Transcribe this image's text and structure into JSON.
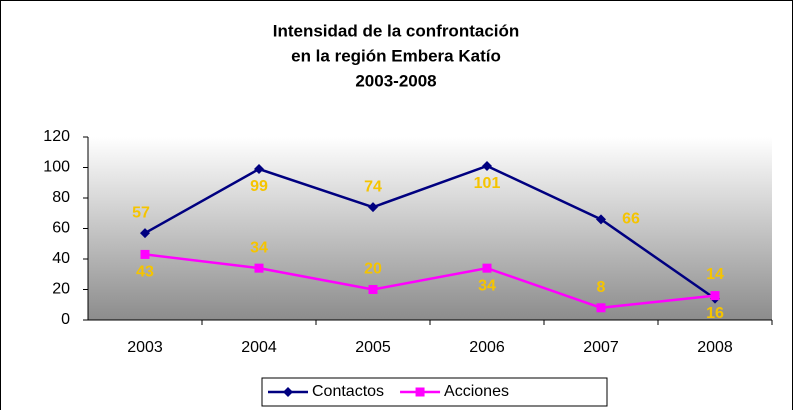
{
  "chart_data": {
    "type": "line",
    "title": [
      "Intensidad de la confrontación",
      "en la región Embera Katío",
      "2003-2008"
    ],
    "categories": [
      "2003",
      "2004",
      "2005",
      "2006",
      "2007",
      "2008"
    ],
    "series": [
      {
        "name": "Contactos",
        "color": "#000080",
        "marker": "diamond",
        "values": [
          57,
          99,
          74,
          101,
          66,
          14
        ]
      },
      {
        "name": "Acciones",
        "color": "#ff00ff",
        "marker": "square",
        "values": [
          43,
          34,
          20,
          34,
          8,
          16
        ]
      }
    ],
    "ylim": [
      0,
      120
    ],
    "yticks": [
      0,
      20,
      40,
      60,
      80,
      100,
      120
    ],
    "grid": false,
    "legend": "bottom"
  }
}
